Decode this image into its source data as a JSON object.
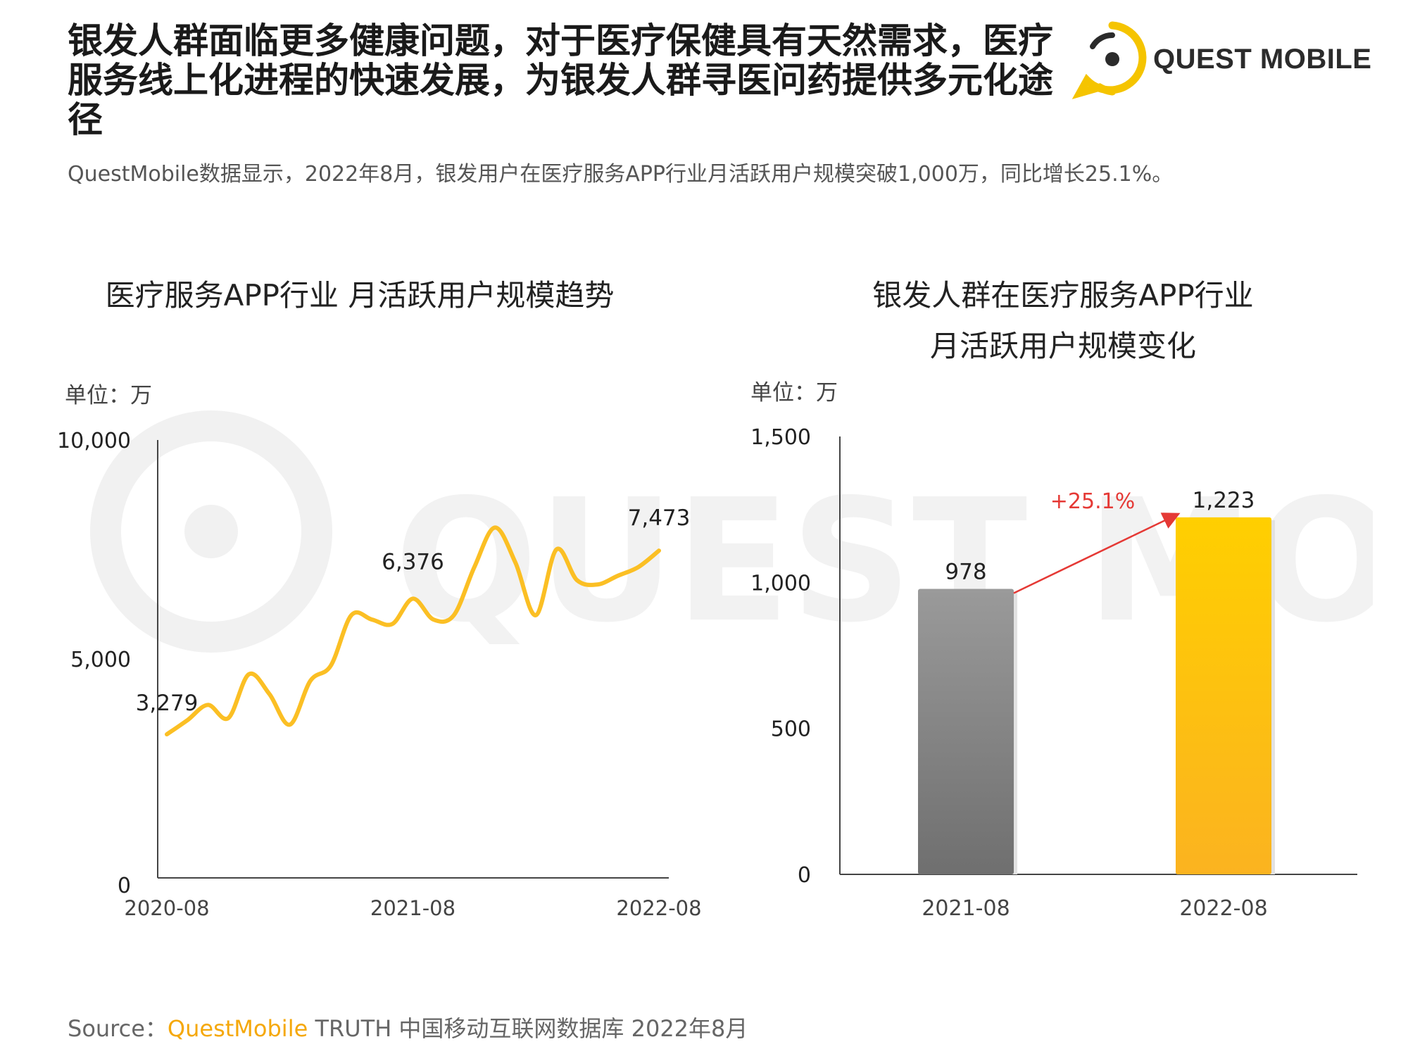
{
  "headline": "银发人群面临更多健康问题，对于医疗保健具有天然需求，医疗服务线上化进程的快速发展，为银发人群寻医问药提供多元化途径",
  "subtitle": "QuestMobile数据显示，2022年8月，银发用户在医疗服务APP行业月活跃用户规模突破1,000万，同比增长25.1%。",
  "logo": {
    "text": "QUEST MOBILE",
    "color": "#f5c400"
  },
  "watermark": {
    "text": "QUEST MOBILE"
  },
  "source": {
    "label": "Source：",
    "brand": "QuestMobile",
    "rest": " TRUTH 中国移动互联网数据库 2022年8月"
  },
  "chart_data": [
    {
      "type": "line",
      "title": "医疗服务APP行业 月活跃用户规模趋势",
      "unit": "单位：万",
      "ylim": [
        0,
        10000
      ],
      "y_ticks": [
        0,
        5000,
        10000
      ],
      "y_tick_labels": [
        "0",
        "5,000",
        "10,000"
      ],
      "x_tick_labels": [
        "2020-08",
        "2021-08",
        "2022-08"
      ],
      "x": [
        "2020-08",
        "2020-09",
        "2020-10",
        "2020-11",
        "2020-12",
        "2021-01",
        "2021-02",
        "2021-03",
        "2021-04",
        "2021-05",
        "2021-06",
        "2021-07",
        "2021-08",
        "2021-09",
        "2021-10",
        "2021-11",
        "2021-12",
        "2022-01",
        "2022-02",
        "2022-03",
        "2022-04",
        "2022-05",
        "2022-06",
        "2022-07",
        "2022-08"
      ],
      "series": [
        {
          "values": [
            3279,
            3600,
            3950,
            3650,
            4650,
            4200,
            3500,
            4500,
            4850,
            6000,
            5900,
            5800,
            6376,
            5900,
            6000,
            7100,
            8000,
            7200,
            6000,
            7500,
            6800,
            6700,
            6900,
            7100,
            7473
          ]
        }
      ],
      "labeled_points": [
        {
          "x": "2020-08",
          "value": 3279,
          "label": "3,279"
        },
        {
          "x": "2021-08",
          "value": 6376,
          "label": "6,376"
        },
        {
          "x": "2022-08",
          "value": 7473,
          "label": "7,473"
        }
      ],
      "color": "#fbbf24",
      "grid": false
    },
    {
      "type": "bar",
      "title": [
        "银发人群在医疗服务APP行业",
        "月活跃用户规模变化"
      ],
      "unit": "单位：万",
      "ylim": [
        0,
        1500
      ],
      "y_ticks": [
        0,
        500,
        1000,
        1500
      ],
      "y_tick_labels": [
        "0",
        "500",
        "1,000",
        "1,500"
      ],
      "categories": [
        "2021-08",
        "2022-08"
      ],
      "values": [
        978,
        1223
      ],
      "value_labels": [
        "978",
        "1,223"
      ],
      "colors": [
        "#888888",
        "#fbc02d"
      ],
      "annotation": {
        "text": "+25.1%",
        "color": "#e53935"
      },
      "grid": false
    }
  ]
}
